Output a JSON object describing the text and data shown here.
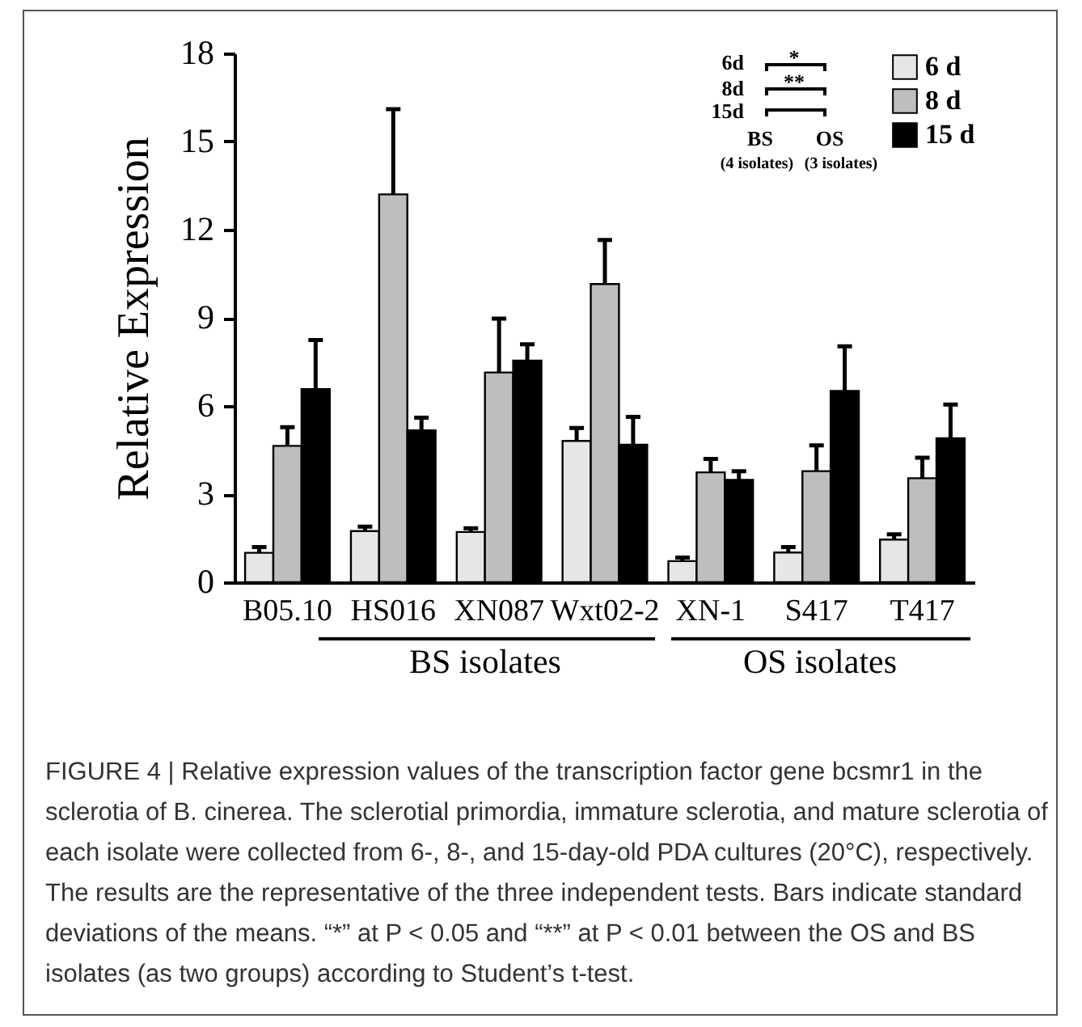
{
  "chart_data": {
    "type": "bar",
    "ylabel": "Relative Expression",
    "categories": [
      "B05.10",
      "HS016",
      "XN087",
      "Wxt02-2",
      "XN-1",
      "S417",
      "T417"
    ],
    "series": [
      {
        "name": "6 d",
        "color": "#e6e6e6",
        "values": [
          1.0,
          1.74,
          1.71,
          4.81,
          0.72,
          1.01,
          1.45
        ],
        "errors": [
          0.2,
          0.15,
          0.13,
          0.44,
          0.12,
          0.19,
          0.18
        ]
      },
      {
        "name": "8 d",
        "color": "#bebebe",
        "values": [
          4.64,
          13.2,
          7.14,
          10.15,
          3.74,
          3.78,
          3.54
        ],
        "errors": [
          0.64,
          2.9,
          1.83,
          1.5,
          0.46,
          0.88,
          0.7
        ]
      },
      {
        "name": "15 d",
        "color": "#000000",
        "values": [
          6.57,
          5.17,
          7.54,
          4.68,
          3.48,
          6.51,
          4.9
        ],
        "errors": [
          1.67,
          0.43,
          0.56,
          0.95,
          0.3,
          1.52,
          1.15
        ]
      }
    ],
    "ylim": [
      0,
      18
    ],
    "yticks": [
      0,
      3,
      6,
      9,
      12,
      15,
      18
    ],
    "grid": false,
    "legend": "top right",
    "annotations": [
      "BS isolates",
      "OS isolates",
      "6d",
      "8d",
      "15d",
      "*",
      "**",
      "BS",
      "OS",
      "(4 isolates)",
      "(3 isolates)",
      "FIGURE 4 | Relative expression values of the transcription factor gene bcsmr1 in the sclerotia of B. cinerea. The sclerotial primordia, immature sclerotia, and mature sclerotia of each isolate were collected from 6-, 8-, and 15-day-old PDA cultures (20°C), respectively. The results are the representative of the three independent tests. Bars indicate standard deviations of the means. “*” at P < 0.05 and “**” at P < 0.01 between the OS and BS isolates (as two groups) according to Student’s t-test."
    ]
  }
}
